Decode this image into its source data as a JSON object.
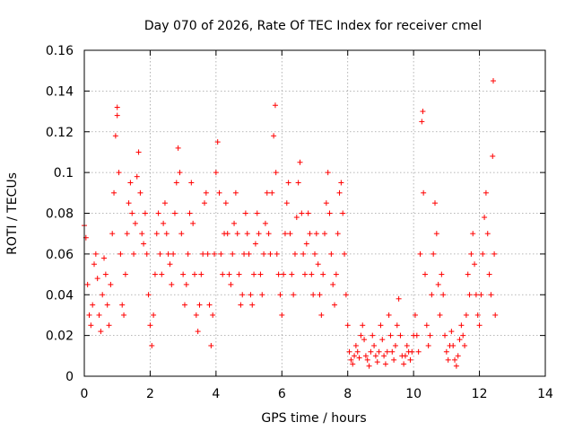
{
  "chart_data": {
    "type": "scatter",
    "title": "Day 070 of 2026, Rate Of TEC Index for receiver cmel",
    "xlabel": "GPS time / hours",
    "ylabel": "ROTI / TECUs",
    "xlim": [
      0,
      14
    ],
    "ylim": [
      0,
      0.16
    ],
    "xticks": [
      0,
      2,
      4,
      6,
      8,
      10,
      12,
      14
    ],
    "xtick_labels": [
      "0",
      "2",
      "4",
      "6",
      "8",
      "10",
      "12",
      "14"
    ],
    "yticks": [
      0,
      0.02,
      0.04,
      0.06,
      0.08,
      0.1,
      0.12,
      0.14,
      0.16
    ],
    "ytick_labels": [
      "0",
      "0.02",
      "0.04",
      "0.06",
      "0.08",
      "0.1",
      "0.12",
      "0.14",
      "0.16"
    ],
    "grid": true,
    "marker": "+",
    "color": "#ff0000",
    "series": [
      {
        "name": "ROTI",
        "points": [
          [
            0.0,
            0.074
          ],
          [
            0.05,
            0.068
          ],
          [
            0.1,
            0.045
          ],
          [
            0.15,
            0.03
          ],
          [
            0.2,
            0.025
          ],
          [
            0.25,
            0.035
          ],
          [
            0.3,
            0.055
          ],
          [
            0.35,
            0.06
          ],
          [
            0.4,
            0.048
          ],
          [
            0.45,
            0.03
          ],
          [
            0.5,
            0.022
          ],
          [
            0.55,
            0.04
          ],
          [
            0.6,
            0.058
          ],
          [
            0.65,
            0.05
          ],
          [
            0.7,
            0.035
          ],
          [
            0.75,
            0.025
          ],
          [
            0.8,
            0.045
          ],
          [
            0.85,
            0.07
          ],
          [
            0.9,
            0.09
          ],
          [
            0.95,
            0.118
          ],
          [
            1.0,
            0.132
          ],
          [
            1.0,
            0.128
          ],
          [
            1.05,
            0.1
          ],
          [
            1.1,
            0.06
          ],
          [
            1.15,
            0.035
          ],
          [
            1.2,
            0.03
          ],
          [
            1.25,
            0.05
          ],
          [
            1.3,
            0.07
          ],
          [
            1.35,
            0.085
          ],
          [
            1.4,
            0.095
          ],
          [
            1.45,
            0.08
          ],
          [
            1.5,
            0.06
          ],
          [
            1.55,
            0.075
          ],
          [
            1.6,
            0.098
          ],
          [
            1.65,
            0.11
          ],
          [
            1.7,
            0.09
          ],
          [
            1.75,
            0.07
          ],
          [
            1.8,
            0.065
          ],
          [
            1.85,
            0.08
          ],
          [
            1.9,
            0.06
          ],
          [
            1.95,
            0.04
          ],
          [
            2.0,
            0.025
          ],
          [
            2.05,
            0.015
          ],
          [
            2.1,
            0.03
          ],
          [
            2.15,
            0.05
          ],
          [
            2.2,
            0.07
          ],
          [
            2.25,
            0.08
          ],
          [
            2.3,
            0.06
          ],
          [
            2.35,
            0.05
          ],
          [
            2.4,
            0.075
          ],
          [
            2.45,
            0.085
          ],
          [
            2.5,
            0.07
          ],
          [
            2.55,
            0.06
          ],
          [
            2.6,
            0.055
          ],
          [
            2.65,
            0.045
          ],
          [
            2.7,
            0.06
          ],
          [
            2.75,
            0.08
          ],
          [
            2.8,
            0.095
          ],
          [
            2.85,
            0.112
          ],
          [
            2.9,
            0.1
          ],
          [
            2.95,
            0.07
          ],
          [
            3.0,
            0.05
          ],
          [
            3.05,
            0.035
          ],
          [
            3.1,
            0.045
          ],
          [
            3.15,
            0.06
          ],
          [
            3.2,
            0.08
          ],
          [
            3.25,
            0.095
          ],
          [
            3.3,
            0.075
          ],
          [
            3.35,
            0.05
          ],
          [
            3.4,
            0.03
          ],
          [
            3.45,
            0.022
          ],
          [
            3.5,
            0.035
          ],
          [
            3.55,
            0.05
          ],
          [
            3.6,
            0.06
          ],
          [
            3.65,
            0.085
          ],
          [
            3.7,
            0.09
          ],
          [
            3.75,
            0.06
          ],
          [
            3.8,
            0.035
          ],
          [
            3.85,
            0.015
          ],
          [
            3.9,
            0.03
          ],
          [
            3.95,
            0.06
          ],
          [
            4.0,
            0.1
          ],
          [
            4.05,
            0.115
          ],
          [
            4.1,
            0.09
          ],
          [
            4.15,
            0.06
          ],
          [
            4.2,
            0.05
          ],
          [
            4.25,
            0.07
          ],
          [
            4.3,
            0.085
          ],
          [
            4.35,
            0.07
          ],
          [
            4.4,
            0.05
          ],
          [
            4.45,
            0.045
          ],
          [
            4.5,
            0.06
          ],
          [
            4.55,
            0.075
          ],
          [
            4.6,
            0.09
          ],
          [
            4.65,
            0.07
          ],
          [
            4.7,
            0.05
          ],
          [
            4.75,
            0.035
          ],
          [
            4.8,
            0.04
          ],
          [
            4.85,
            0.06
          ],
          [
            4.9,
            0.08
          ],
          [
            4.95,
            0.07
          ],
          [
            5.0,
            0.06
          ],
          [
            5.05,
            0.04
          ],
          [
            5.1,
            0.035
          ],
          [
            5.15,
            0.05
          ],
          [
            5.2,
            0.065
          ],
          [
            5.25,
            0.08
          ],
          [
            5.3,
            0.07
          ],
          [
            5.35,
            0.05
          ],
          [
            5.4,
            0.04
          ],
          [
            5.45,
            0.06
          ],
          [
            5.5,
            0.075
          ],
          [
            5.55,
            0.09
          ],
          [
            5.6,
            0.07
          ],
          [
            5.65,
            0.06
          ],
          [
            5.7,
            0.09
          ],
          [
            5.75,
            0.118
          ],
          [
            5.8,
            0.133
          ],
          [
            5.82,
            0.1
          ],
          [
            5.85,
            0.06
          ],
          [
            5.9,
            0.05
          ],
          [
            5.95,
            0.04
          ],
          [
            6.0,
            0.03
          ],
          [
            6.05,
            0.05
          ],
          [
            6.1,
            0.07
          ],
          [
            6.15,
            0.085
          ],
          [
            6.2,
            0.095
          ],
          [
            6.25,
            0.07
          ],
          [
            6.3,
            0.05
          ],
          [
            6.35,
            0.04
          ],
          [
            6.4,
            0.06
          ],
          [
            6.45,
            0.078
          ],
          [
            6.5,
            0.095
          ],
          [
            6.55,
            0.105
          ],
          [
            6.6,
            0.08
          ],
          [
            6.65,
            0.06
          ],
          [
            6.7,
            0.05
          ],
          [
            6.75,
            0.065
          ],
          [
            6.8,
            0.08
          ],
          [
            6.85,
            0.07
          ],
          [
            6.9,
            0.05
          ],
          [
            6.95,
            0.04
          ],
          [
            7.0,
            0.06
          ],
          [
            7.05,
            0.07
          ],
          [
            7.1,
            0.055
          ],
          [
            7.15,
            0.04
          ],
          [
            7.2,
            0.03
          ],
          [
            7.25,
            0.05
          ],
          [
            7.3,
            0.07
          ],
          [
            7.35,
            0.085
          ],
          [
            7.4,
            0.1
          ],
          [
            7.45,
            0.08
          ],
          [
            7.5,
            0.06
          ],
          [
            7.55,
            0.045
          ],
          [
            7.6,
            0.035
          ],
          [
            7.65,
            0.05
          ],
          [
            7.7,
            0.07
          ],
          [
            7.75,
            0.09
          ],
          [
            7.8,
            0.095
          ],
          [
            7.85,
            0.08
          ],
          [
            7.9,
            0.06
          ],
          [
            7.95,
            0.04
          ],
          [
            8.0,
            0.025
          ],
          [
            8.05,
            0.012
          ],
          [
            8.1,
            0.008
          ],
          [
            8.15,
            0.006
          ],
          [
            8.2,
            0.01
          ],
          [
            8.25,
            0.015
          ],
          [
            8.3,
            0.012
          ],
          [
            8.35,
            0.009
          ],
          [
            8.4,
            0.02
          ],
          [
            8.45,
            0.025
          ],
          [
            8.5,
            0.018
          ],
          [
            8.55,
            0.01
          ],
          [
            8.6,
            0.008
          ],
          [
            8.65,
            0.005
          ],
          [
            8.7,
            0.012
          ],
          [
            8.75,
            0.02
          ],
          [
            8.8,
            0.015
          ],
          [
            8.85,
            0.01
          ],
          [
            8.9,
            0.007
          ],
          [
            8.95,
            0.012
          ],
          [
            9.0,
            0.025
          ],
          [
            9.05,
            0.018
          ],
          [
            9.1,
            0.01
          ],
          [
            9.15,
            0.006
          ],
          [
            9.2,
            0.012
          ],
          [
            9.25,
            0.03
          ],
          [
            9.3,
            0.02
          ],
          [
            9.35,
            0.012
          ],
          [
            9.4,
            0.008
          ],
          [
            9.45,
            0.015
          ],
          [
            9.5,
            0.025
          ],
          [
            9.55,
            0.038
          ],
          [
            9.6,
            0.02
          ],
          [
            9.65,
            0.01
          ],
          [
            9.7,
            0.006
          ],
          [
            9.75,
            0.01
          ],
          [
            9.8,
            0.015
          ],
          [
            9.85,
            0.012
          ],
          [
            9.9,
            0.008
          ],
          [
            9.95,
            0.012
          ],
          [
            10.0,
            0.02
          ],
          [
            10.05,
            0.03
          ],
          [
            10.1,
            0.02
          ],
          [
            10.15,
            0.012
          ],
          [
            10.2,
            0.06
          ],
          [
            10.25,
            0.125
          ],
          [
            10.28,
            0.13
          ],
          [
            10.3,
            0.09
          ],
          [
            10.35,
            0.05
          ],
          [
            10.4,
            0.025
          ],
          [
            10.45,
            0.015
          ],
          [
            10.5,
            0.02
          ],
          [
            10.55,
            0.04
          ],
          [
            10.6,
            0.06
          ],
          [
            10.65,
            0.085
          ],
          [
            10.7,
            0.07
          ],
          [
            10.75,
            0.045
          ],
          [
            10.8,
            0.03
          ],
          [
            10.85,
            0.05
          ],
          [
            10.9,
            0.04
          ],
          [
            10.95,
            0.02
          ],
          [
            11.0,
            0.012
          ],
          [
            11.05,
            0.008
          ],
          [
            11.1,
            0.015
          ],
          [
            11.15,
            0.022
          ],
          [
            11.2,
            0.015
          ],
          [
            11.25,
            0.008
          ],
          [
            11.3,
            0.005
          ],
          [
            11.35,
            0.01
          ],
          [
            11.4,
            0.018
          ],
          [
            11.45,
            0.025
          ],
          [
            11.5,
            0.02
          ],
          [
            11.55,
            0.015
          ],
          [
            11.6,
            0.03
          ],
          [
            11.65,
            0.05
          ],
          [
            11.7,
            0.04
          ],
          [
            11.75,
            0.06
          ],
          [
            11.8,
            0.07
          ],
          [
            11.85,
            0.055
          ],
          [
            11.9,
            0.04
          ],
          [
            11.95,
            0.03
          ],
          [
            12.0,
            0.025
          ],
          [
            12.05,
            0.04
          ],
          [
            12.1,
            0.06
          ],
          [
            12.15,
            0.078
          ],
          [
            12.2,
            0.09
          ],
          [
            12.25,
            0.07
          ],
          [
            12.3,
            0.05
          ],
          [
            12.35,
            0.04
          ],
          [
            12.4,
            0.108
          ],
          [
            12.42,
            0.145
          ],
          [
            12.45,
            0.06
          ],
          [
            12.48,
            0.03
          ]
        ]
      }
    ]
  }
}
